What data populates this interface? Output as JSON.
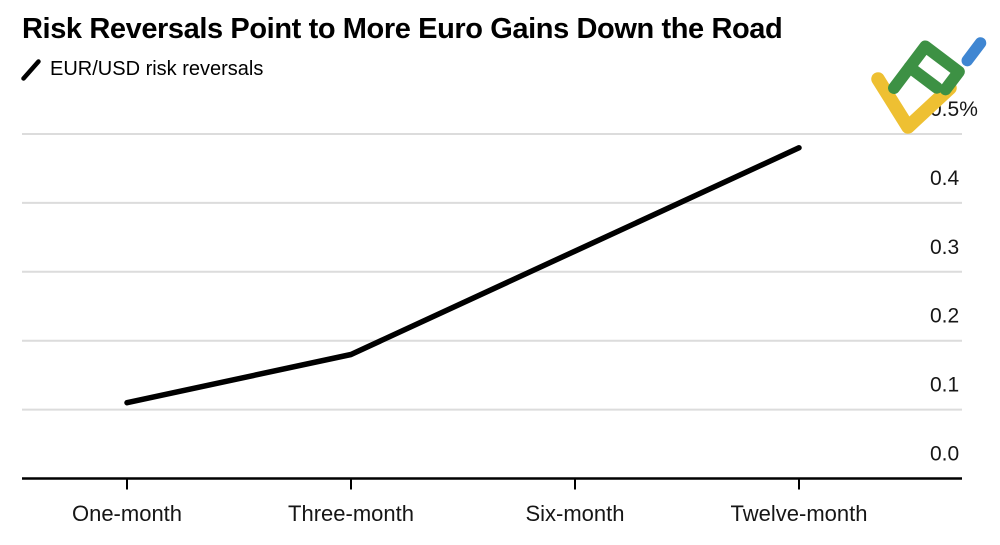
{
  "header": {
    "title": "Risk Reversals Point to More Euro Gains Down the Road"
  },
  "legend": {
    "marker": "slash-icon",
    "label": "EUR/USD risk reversals"
  },
  "chart_data": {
    "type": "line",
    "title": "Risk Reversals Point to More Euro Gains Down the Road",
    "categories": [
      "One-month",
      "Three-month",
      "Six-month",
      "Twelve-month"
    ],
    "series": [
      {
        "name": "EUR/USD risk reversals",
        "values": [
          0.11,
          0.18,
          0.33,
          0.48
        ]
      }
    ],
    "unit": "%",
    "xlabel": "",
    "ylabel": "",
    "ylim": [
      0.0,
      0.5
    ],
    "yticks": [
      0.0,
      0.1,
      0.2,
      0.3,
      0.4,
      0.5
    ],
    "ytick_labels": [
      "0.0",
      "0.1",
      "0.2",
      "0.3",
      "0.4",
      "0.5%"
    ],
    "grid": "horizontal",
    "legend_position": "top-left",
    "line_color": "#000000",
    "grid_color": "#dcdcdc",
    "axis_color": "#000000",
    "tick_text_color": "#161616"
  },
  "logo": {
    "name": "litefinance-logo",
    "green": "#3d9144",
    "blue": "#3f86d2",
    "yellow": "#eec032"
  }
}
